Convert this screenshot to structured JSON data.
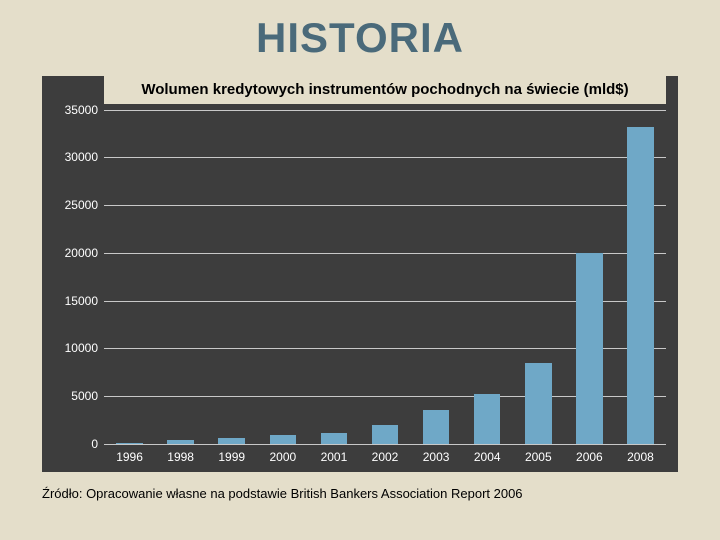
{
  "page": {
    "title": "HISTORIA",
    "source_text": "Źródło: Opracowanie własne na podstawie British Bankers Association Report 2006",
    "title_color": "#4a6a7a",
    "background_color": "#e4deca"
  },
  "chart": {
    "type": "bar",
    "title": "Wolumen kredytowych instrumentów pochodnych na świecie (mld$)",
    "title_fontsize": 15,
    "background_color": "#3d3d3d",
    "grid_color": "#c8c8c8",
    "axis_label_color": "#ffffff",
    "axis_label_fontsize": 12,
    "bar_color": "#6fa8c7",
    "bar_width": 0.52,
    "ylim": [
      0,
      35000
    ],
    "ytick_step": 5000,
    "yticks": [
      0,
      5000,
      10000,
      15000,
      20000,
      25000,
      30000,
      35000
    ],
    "categories": [
      "1996",
      "1998",
      "1999",
      "2000",
      "2001",
      "2002",
      "2003",
      "2004",
      "2005",
      "2006",
      "2008"
    ],
    "values": [
      150,
      400,
      600,
      900,
      1200,
      2000,
      3600,
      5200,
      8500,
      20000,
      33200
    ]
  }
}
